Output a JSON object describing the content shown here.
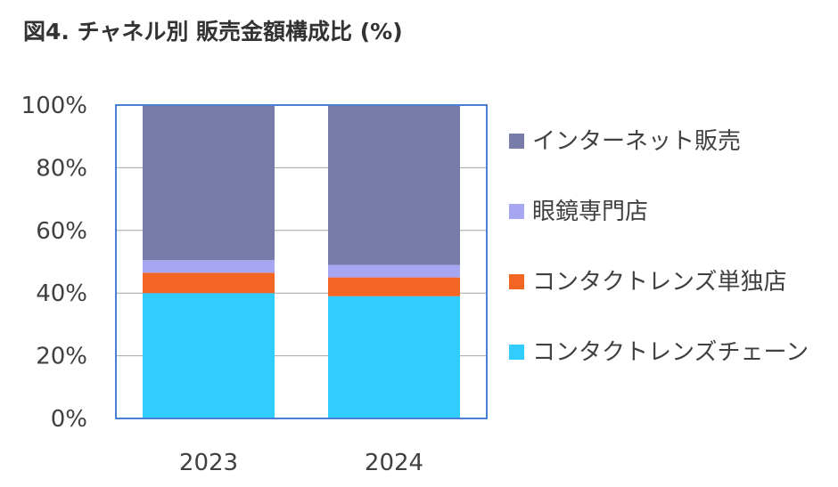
{
  "title": "図4. チャネル別 販売金額構成比 (%)",
  "chart_data": {
    "type": "bar",
    "stacked": true,
    "categories": [
      "2023",
      "2024"
    ],
    "series": [
      {
        "name": "コンタクトレンズチェーン",
        "color": "#33ccff",
        "values": [
          40,
          39
        ]
      },
      {
        "name": "コンタクトレンズ単独店",
        "color": "#f26522",
        "values": [
          6.5,
          6
        ]
      },
      {
        "name": "眼鏡専門店",
        "color": "#a6a6f2",
        "values": [
          4,
          4
        ]
      },
      {
        "name": "インターネット販売",
        "color": "#787ca8",
        "values": [
          49.5,
          51
        ]
      }
    ],
    "ylim": [
      0,
      100
    ],
    "yticks": [
      "0%",
      "20%",
      "40%",
      "60%",
      "80%",
      "100%"
    ],
    "grid": true,
    "legend": "right"
  }
}
